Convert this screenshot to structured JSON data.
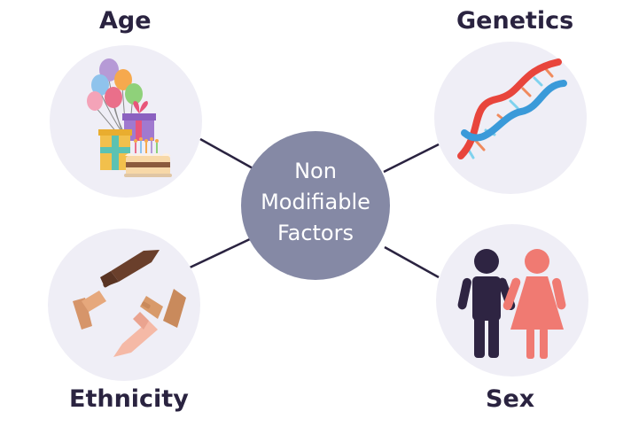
{
  "center": {
    "lines": [
      "Non",
      "Modifiable",
      "Factors"
    ]
  },
  "factors": {
    "age": {
      "label": "Age",
      "icon": "balloons-gifts-cake-icon"
    },
    "genetics": {
      "label": "Genetics",
      "icon": "dna-helix-icon"
    },
    "ethnicity": {
      "label": "Ethnicity",
      "icon": "diverse-hands-icon"
    },
    "sex": {
      "label": "Sex",
      "icon": "man-woman-icon"
    }
  },
  "colors": {
    "center_circle": "#8589a5",
    "icon_circle": "#efeef6",
    "connector": "#2a2340",
    "label_text": "#2a2340",
    "man": "#2e2442",
    "woman": "#f07a72"
  }
}
